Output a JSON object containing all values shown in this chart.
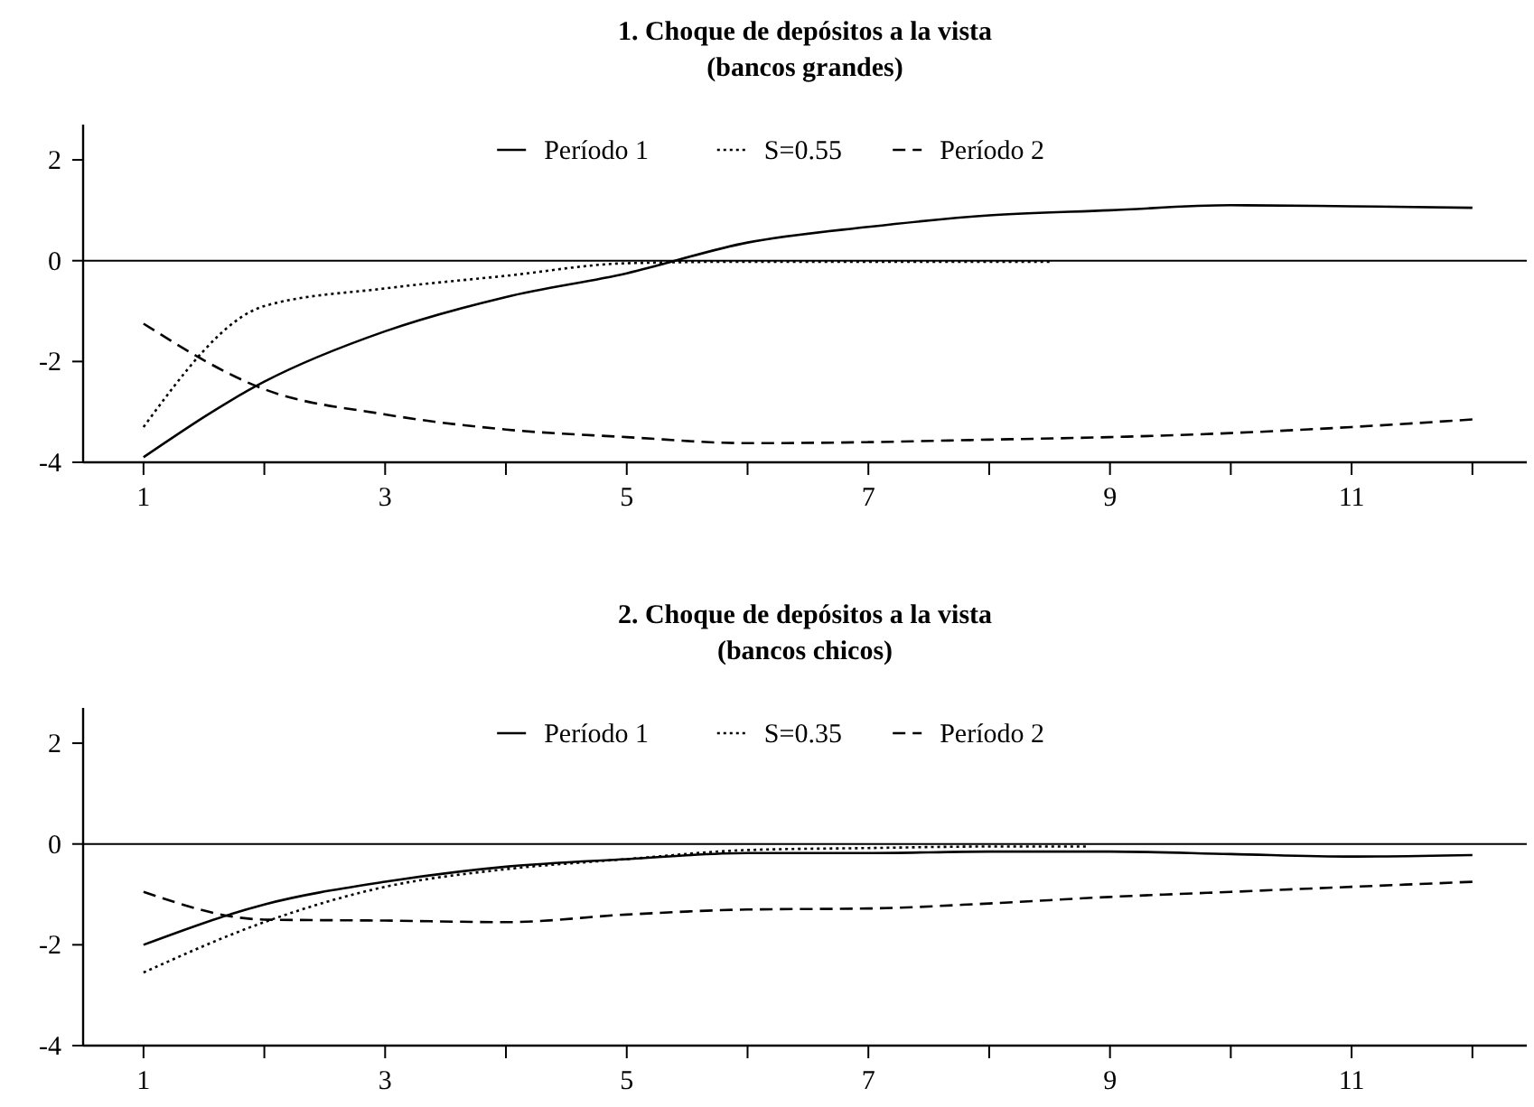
{
  "chart_data": [
    {
      "type": "line",
      "title": "1. Choque de depósitos a la vista",
      "subtitle": "(bancos grandes)",
      "xlim": [
        0.5,
        12.45
      ],
      "ylim": [
        -4,
        2.7
      ],
      "xticks": [
        1,
        {
          "value": 2,
          "label": null
        },
        3,
        {
          "value": 4,
          "label": null
        },
        5,
        {
          "value": 6,
          "label": null
        },
        7,
        {
          "value": 8,
          "label": null
        },
        9,
        {
          "value": 10,
          "label": null
        },
        11,
        {
          "value": 12,
          "label": null
        }
      ],
      "yticks": [
        -4,
        -2,
        0,
        2
      ],
      "grid": false,
      "legend": "top",
      "marker": "none",
      "ref_lines": [
        {
          "axis": "y",
          "value": 0,
          "color": "#000000"
        }
      ],
      "series": [
        {
          "name": "Período 1",
          "color": "#000000",
          "line_style": "solid",
          "x": [
            1,
            2,
            3,
            4,
            5,
            6,
            7,
            8,
            9,
            10,
            11,
            12
          ],
          "values": [
            -3.9,
            -2.4,
            -1.4,
            -0.72,
            -0.25,
            0.36,
            0.67,
            0.9,
            1.0,
            1.1,
            1.08,
            1.05
          ]
        },
        {
          "name": "S=0.55",
          "color": "#000000",
          "line_style": "dotted",
          "x": [
            1,
            2,
            3,
            4,
            5,
            6,
            7,
            8,
            8.5
          ],
          "values": [
            -3.3,
            -0.9,
            -0.55,
            -0.3,
            -0.05,
            -0.02,
            -0.02,
            -0.02,
            -0.02
          ]
        },
        {
          "name": "Período 2",
          "color": "#000000",
          "line_style": "dashed",
          "x": [
            1,
            2,
            3,
            4,
            5,
            6,
            7,
            8,
            9,
            10,
            11,
            12
          ],
          "values": [
            -1.25,
            -2.55,
            -3.05,
            -3.35,
            -3.5,
            -3.62,
            -3.6,
            -3.55,
            -3.5,
            -3.42,
            -3.3,
            -3.15
          ]
        }
      ]
    },
    {
      "type": "line",
      "title": "2. Choque de depósitos a la vista",
      "subtitle": "(bancos chicos)",
      "xlim": [
        0.5,
        12.45
      ],
      "ylim": [
        -4,
        2.7
      ],
      "xticks": [
        1,
        {
          "value": 2,
          "label": null
        },
        3,
        {
          "value": 4,
          "label": null
        },
        5,
        {
          "value": 6,
          "label": null
        },
        7,
        {
          "value": 8,
          "label": null
        },
        9,
        {
          "value": 10,
          "label": null
        },
        11,
        {
          "value": 12,
          "label": null
        }
      ],
      "yticks": [
        -4,
        -2,
        0,
        2
      ],
      "grid": false,
      "legend": "top",
      "marker": "none",
      "ref_lines": [
        {
          "axis": "y",
          "value": 0,
          "color": "#000000"
        }
      ],
      "series": [
        {
          "name": "Período 1",
          "color": "#000000",
          "line_style": "solid",
          "x": [
            1,
            2,
            3,
            4,
            5,
            6,
            7,
            8,
            9,
            10,
            11,
            12
          ],
          "values": [
            -2.0,
            -1.2,
            -0.75,
            -0.45,
            -0.3,
            -0.18,
            -0.18,
            -0.15,
            -0.15,
            -0.2,
            -0.25,
            -0.22
          ]
        },
        {
          "name": "S=0.35",
          "color": "#000000",
          "line_style": "dotted",
          "x": [
            1,
            2,
            3,
            4,
            5,
            6,
            7,
            8,
            8.8
          ],
          "values": [
            -2.55,
            -1.55,
            -0.85,
            -0.5,
            -0.3,
            -0.12,
            -0.08,
            -0.05,
            -0.05
          ]
        },
        {
          "name": "Período 2",
          "color": "#000000",
          "line_style": "dashed",
          "x": [
            1,
            2,
            3,
            4,
            5,
            6,
            7,
            8,
            9,
            10,
            11,
            12
          ],
          "values": [
            -0.95,
            -1.5,
            -1.52,
            -1.55,
            -1.4,
            -1.3,
            -1.28,
            -1.18,
            -1.05,
            -0.95,
            -0.85,
            -0.75
          ]
        }
      ]
    }
  ]
}
